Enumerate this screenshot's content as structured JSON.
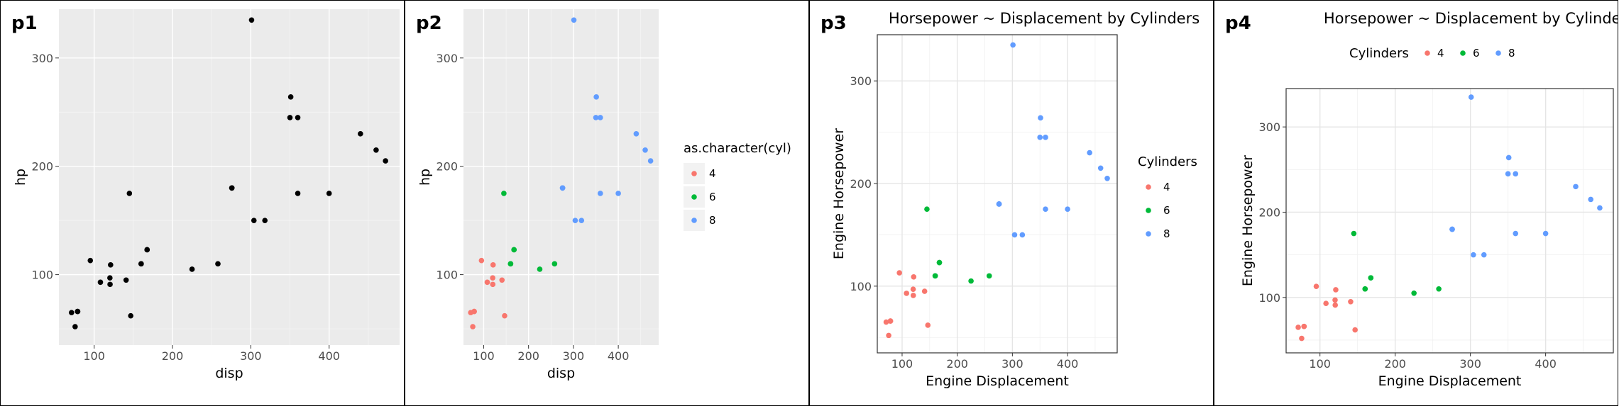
{
  "chart_data": [
    {
      "panel_label": "p1",
      "type": "scatter",
      "theme": "gray",
      "title": "",
      "xlabel": "disp",
      "ylabel": "hp",
      "xlim": [
        55,
        490
      ],
      "ylim": [
        35,
        345
      ],
      "xticks": [
        100,
        200,
        300,
        400
      ],
      "yticks": [
        100,
        200,
        300
      ],
      "grid": true,
      "series": [
        {
          "points": [
            [
              160,
              110
            ],
            [
              160,
              110
            ],
            [
              108,
              93
            ],
            [
              258,
              110
            ],
            [
              360,
              175
            ],
            [
              225,
              105
            ],
            [
              360,
              245
            ],
            [
              146.7,
              62
            ],
            [
              140.8,
              95
            ],
            [
              167.6,
              123
            ],
            [
              167.6,
              123
            ],
            [
              275.8,
              180
            ],
            [
              275.8,
              180
            ],
            [
              275.8,
              180
            ],
            [
              472,
              205
            ],
            [
              460,
              215
            ],
            [
              440,
              230
            ],
            [
              78.7,
              66
            ],
            [
              75.7,
              52
            ],
            [
              71.1,
              65
            ],
            [
              120.1,
              97
            ],
            [
              318,
              150
            ],
            [
              304,
              150
            ],
            [
              350,
              245
            ],
            [
              400,
              175
            ],
            [
              79,
              66
            ],
            [
              120.3,
              91
            ],
            [
              95.1,
              113
            ],
            [
              351,
              264
            ],
            [
              145,
              175
            ],
            [
              301,
              335
            ],
            [
              121,
              109
            ]
          ],
          "color": "#000000"
        }
      ]
    },
    {
      "panel_label": "p2",
      "type": "scatter",
      "theme": "gray",
      "title": "",
      "xlabel": "disp",
      "ylabel": "hp",
      "xlim": [
        55,
        490
      ],
      "ylim": [
        35,
        345
      ],
      "xticks": [
        100,
        200,
        300,
        400
      ],
      "yticks": [
        100,
        200,
        300
      ],
      "grid": true,
      "legend": {
        "title": "as.character(cyl)",
        "position": "right"
      },
      "series": [
        {
          "name": "4",
          "color": "#F8766D",
          "points": [
            [
              108,
              93
            ],
            [
              146.7,
              62
            ],
            [
              140.8,
              95
            ],
            [
              78.7,
              66
            ],
            [
              75.7,
              52
            ],
            [
              71.1,
              65
            ],
            [
              120.1,
              97
            ],
            [
              79,
              66
            ],
            [
              120.3,
              91
            ],
            [
              95.1,
              113
            ],
            [
              121,
              109
            ]
          ]
        },
        {
          "name": "6",
          "color": "#00BA38",
          "points": [
            [
              160,
              110
            ],
            [
              160,
              110
            ],
            [
              258,
              110
            ],
            [
              225,
              105
            ],
            [
              167.6,
              123
            ],
            [
              167.6,
              123
            ],
            [
              145,
              175
            ]
          ]
        },
        {
          "name": "8",
          "color": "#619CFF",
          "points": [
            [
              360,
              175
            ],
            [
              360,
              245
            ],
            [
              275.8,
              180
            ],
            [
              275.8,
              180
            ],
            [
              275.8,
              180
            ],
            [
              472,
              205
            ],
            [
              460,
              215
            ],
            [
              440,
              230
            ],
            [
              318,
              150
            ],
            [
              304,
              150
            ],
            [
              350,
              245
            ],
            [
              400,
              175
            ],
            [
              351,
              264
            ],
            [
              301,
              335
            ]
          ]
        }
      ]
    },
    {
      "panel_label": "p3",
      "type": "scatter",
      "theme": "bw",
      "title": "Horsepower ~ Displacement by Cylinders",
      "xlabel": "Engine Displacement",
      "ylabel": "Engine Horsepower",
      "xlim": [
        55,
        490
      ],
      "ylim": [
        35,
        345
      ],
      "xticks": [
        100,
        200,
        300,
        400
      ],
      "yticks": [
        100,
        200,
        300
      ],
      "grid": true,
      "legend": {
        "title": "Cylinders",
        "position": "right"
      },
      "series": [
        {
          "name": "4",
          "color": "#F8766D",
          "points": [
            [
              108,
              93
            ],
            [
              146.7,
              62
            ],
            [
              140.8,
              95
            ],
            [
              78.7,
              66
            ],
            [
              75.7,
              52
            ],
            [
              71.1,
              65
            ],
            [
              120.1,
              97
            ],
            [
              79,
              66
            ],
            [
              120.3,
              91
            ],
            [
              95.1,
              113
            ],
            [
              121,
              109
            ]
          ]
        },
        {
          "name": "6",
          "color": "#00BA38",
          "points": [
            [
              160,
              110
            ],
            [
              160,
              110
            ],
            [
              258,
              110
            ],
            [
              225,
              105
            ],
            [
              167.6,
              123
            ],
            [
              167.6,
              123
            ],
            [
              145,
              175
            ]
          ]
        },
        {
          "name": "8",
          "color": "#619CFF",
          "points": [
            [
              360,
              175
            ],
            [
              360,
              245
            ],
            [
              275.8,
              180
            ],
            [
              275.8,
              180
            ],
            [
              275.8,
              180
            ],
            [
              472,
              205
            ],
            [
              460,
              215
            ],
            [
              440,
              230
            ],
            [
              318,
              150
            ],
            [
              304,
              150
            ],
            [
              350,
              245
            ],
            [
              400,
              175
            ],
            [
              351,
              264
            ],
            [
              301,
              335
            ]
          ]
        }
      ]
    },
    {
      "panel_label": "p4",
      "type": "scatter",
      "theme": "bw",
      "title": "Horsepower ~ Displacement by Cylinders",
      "xlabel": "Engine Displacement",
      "ylabel": "Engine Horsepower",
      "xlim": [
        55,
        490
      ],
      "ylim": [
        35,
        345
      ],
      "xticks": [
        100,
        200,
        300,
        400
      ],
      "yticks": [
        100,
        200,
        300
      ],
      "grid": true,
      "legend": {
        "title": "Cylinders",
        "position": "top"
      },
      "series": [
        {
          "name": "4",
          "color": "#F8766D",
          "points": [
            [
              108,
              93
            ],
            [
              146.7,
              62
            ],
            [
              140.8,
              95
            ],
            [
              78.7,
              66
            ],
            [
              75.7,
              52
            ],
            [
              71.1,
              65
            ],
            [
              120.1,
              97
            ],
            [
              79,
              66
            ],
            [
              120.3,
              91
            ],
            [
              95.1,
              113
            ],
            [
              121,
              109
            ]
          ]
        },
        {
          "name": "6",
          "color": "#00BA38",
          "points": [
            [
              160,
              110
            ],
            [
              160,
              110
            ],
            [
              258,
              110
            ],
            [
              225,
              105
            ],
            [
              167.6,
              123
            ],
            [
              167.6,
              123
            ],
            [
              145,
              175
            ]
          ]
        },
        {
          "name": "8",
          "color": "#619CFF",
          "points": [
            [
              360,
              175
            ],
            [
              360,
              245
            ],
            [
              275.8,
              180
            ],
            [
              275.8,
              180
            ],
            [
              275.8,
              180
            ],
            [
              472,
              205
            ],
            [
              460,
              215
            ],
            [
              440,
              230
            ],
            [
              318,
              150
            ],
            [
              304,
              150
            ],
            [
              350,
              245
            ],
            [
              400,
              175
            ],
            [
              351,
              264
            ],
            [
              301,
              335
            ]
          ]
        }
      ]
    }
  ]
}
